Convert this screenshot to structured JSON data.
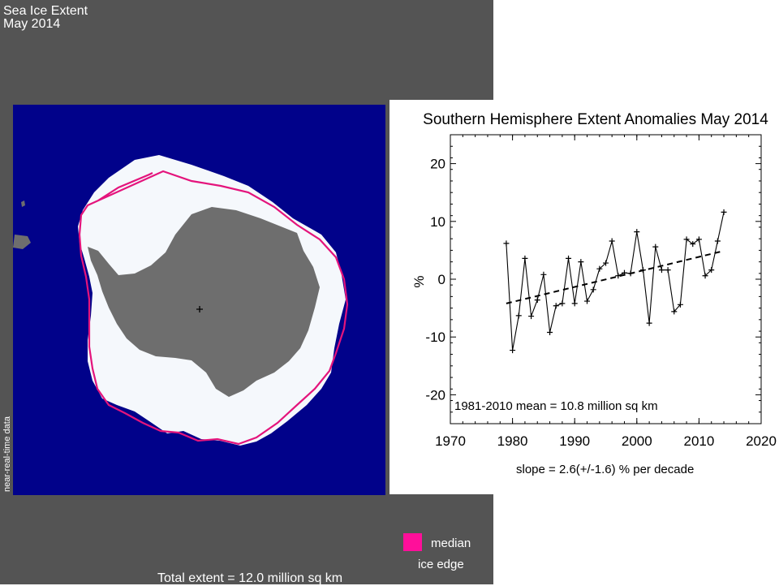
{
  "header": {
    "line1": "Sea Ice Extent",
    "line2": "May 2014"
  },
  "map": {
    "side_label": "near-real-time data",
    "legend": {
      "line1": "median",
      "line2": "ice edge",
      "color": "#ff0f9a"
    },
    "total_extent": "Total extent = 12.0 million sq km",
    "colors": {
      "background": "#545454",
      "ocean": "#01028a",
      "ice": "#f5f8fc",
      "land": "#6e6e6e",
      "median_edge": "#e4147c"
    }
  },
  "chart_data": {
    "type": "line",
    "title": "Southern Hemisphere Extent Anomalies May 2014",
    "xlabel": "",
    "ylabel": "%",
    "xlim": [
      1970,
      2020
    ],
    "ylim": [
      -25,
      25
    ],
    "xticks": [
      1970,
      1980,
      1990,
      2000,
      2010,
      2020
    ],
    "yticks": [
      -20,
      -10,
      0,
      10,
      20
    ],
    "grid": false,
    "annotations": {
      "mean": "1981-2010 mean =  10.8 million sq km",
      "slope": "slope =  2.6(+/-1.6) % per decade"
    },
    "series": [
      {
        "style": "solid-with-plus-markers",
        "x": [
          1979,
          1980,
          1981,
          1982,
          1983,
          1984,
          1985,
          1986,
          1987,
          1988,
          1989,
          1990,
          1991,
          1992,
          1993,
          1994,
          1995,
          1996,
          1997,
          1998,
          1999,
          2000,
          2001,
          2002,
          2003,
          2004,
          2005,
          2006,
          2007,
          2008,
          2009,
          2010,
          2011,
          2012,
          2013,
          2014
        ],
        "values": [
          6.2,
          -12.3,
          -6.3,
          3.6,
          -6.4,
          -3.6,
          0.8,
          -9.2,
          -4.6,
          -4.2,
          3.6,
          -4.2,
          3.0,
          -3.8,
          -1.8,
          1.8,
          2.8,
          6.6,
          0.6,
          1.1,
          1.0,
          8.2,
          1.6,
          -7.6,
          5.6,
          1.6,
          1.6,
          -5.6,
          -4.4,
          6.9,
          6.1,
          6.9,
          0.6,
          1.6,
          6.6,
          11.6
        ]
      },
      {
        "style": "dashed-trend",
        "x": [
          1979,
          2014
        ],
        "values": [
          -4.2,
          4.9
        ]
      }
    ]
  }
}
